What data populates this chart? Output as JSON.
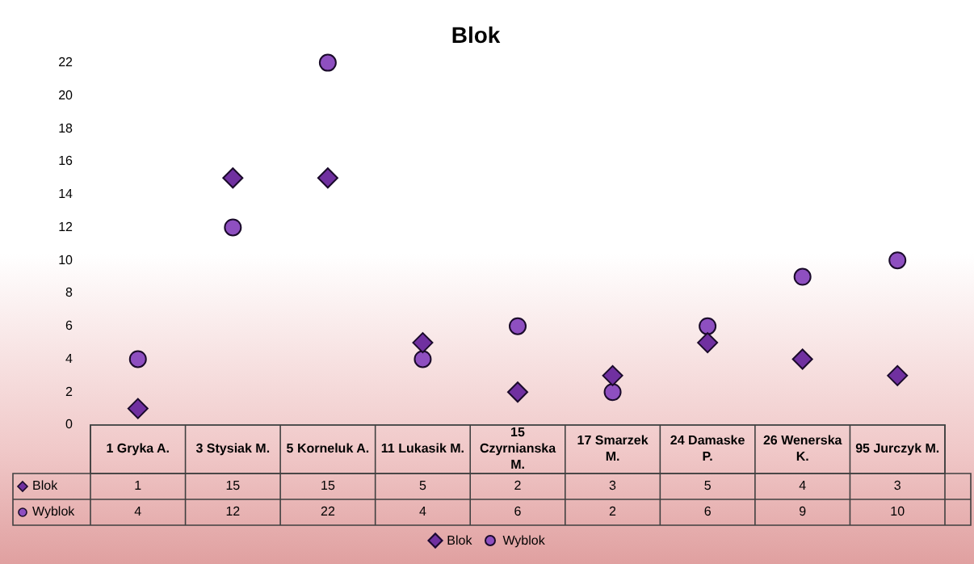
{
  "chart_data": {
    "type": "scatter",
    "title": "Blok",
    "categories": [
      "1 Gryka A.",
      "3 Stysiak M.",
      "5 Korneluk A.",
      "11 Lukasik M.",
      "15 Czyrnianska M.",
      "17 Smarzek M.",
      "24 Damaske P.",
      "26 Wenerska K.",
      "95 Jurczyk M."
    ],
    "series": [
      {
        "name": "Blok",
        "color": "#7030a0",
        "marker": "diamond",
        "values": [
          1,
          15,
          15,
          5,
          2,
          3,
          5,
          4,
          3
        ]
      },
      {
        "name": "Wyblok",
        "color": "#8e4fc0",
        "marker": "circle",
        "values": [
          4,
          12,
          22,
          4,
          6,
          2,
          6,
          9,
          10
        ]
      }
    ],
    "ylim": [
      0,
      22
    ],
    "yticks": [
      0,
      2,
      4,
      6,
      8,
      10,
      12,
      14,
      16,
      18,
      20,
      22
    ],
    "grid": false,
    "legend": "bottom",
    "data_labels": true
  }
}
